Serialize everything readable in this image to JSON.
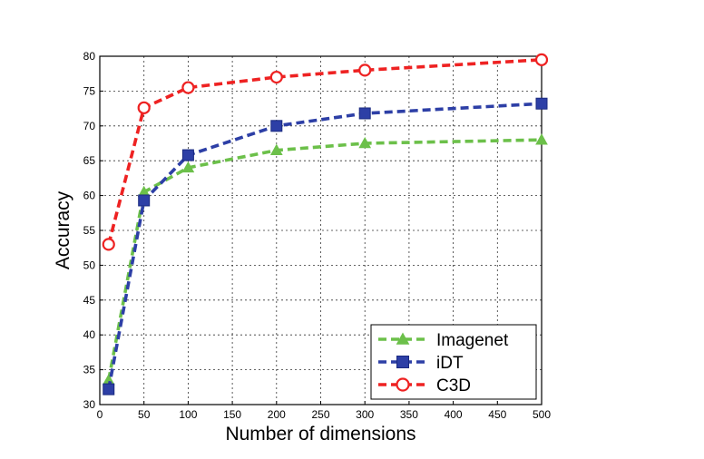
{
  "chart_data": {
    "type": "line",
    "title": "",
    "xlabel": "Number of dimensions",
    "ylabel": "Accuracy",
    "xlim": [
      0,
      500
    ],
    "ylim": [
      30,
      80
    ],
    "x_ticks": [
      0,
      50,
      100,
      150,
      200,
      250,
      300,
      350,
      400,
      450,
      500
    ],
    "y_ticks": [
      30,
      35,
      40,
      45,
      50,
      55,
      60,
      65,
      70,
      75,
      80
    ],
    "grid": true,
    "legend_position": "bottom-right",
    "x": [
      10,
      50,
      100,
      200,
      300,
      500
    ],
    "series": [
      {
        "name": "Imagenet",
        "color": "#6cc04a",
        "marker": "triangle",
        "values": [
          33.5,
          60.5,
          64.0,
          66.5,
          67.5,
          68.0
        ]
      },
      {
        "name": "iDT",
        "color": "#2d3fa6",
        "marker": "square",
        "values": [
          32.2,
          59.3,
          65.8,
          70.0,
          71.8,
          73.2
        ]
      },
      {
        "name": "C3D",
        "color": "#ee2222",
        "marker": "circle",
        "values": [
          53.0,
          72.6,
          75.5,
          77.0,
          78.0,
          79.5
        ]
      }
    ]
  }
}
